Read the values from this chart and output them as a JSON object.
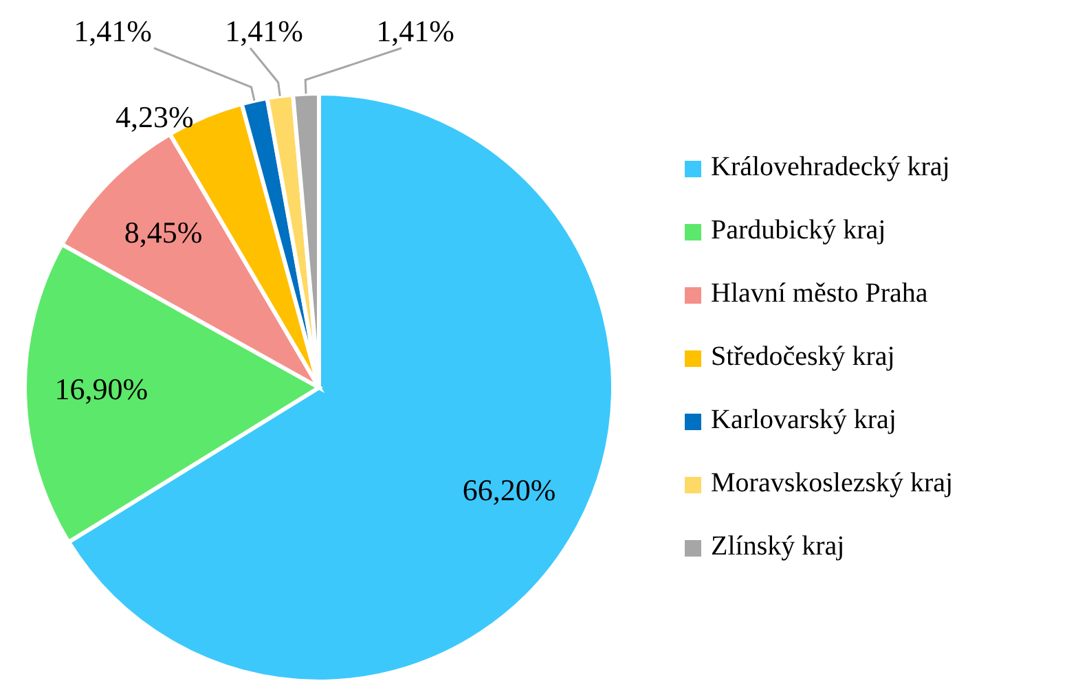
{
  "chart_data": {
    "type": "pie",
    "categories": [
      "Královehradecký kraj",
      "Pardubický kraj",
      "Hlavní město Praha",
      "Středočeský kraj",
      "Karlovarský kraj",
      "Moravskoslezský kraj",
      "Zlínský kraj"
    ],
    "values": [
      66.2,
      16.9,
      8.45,
      4.23,
      1.41,
      1.41,
      1.41
    ],
    "colors": [
      "#3dc8fb",
      "#5ce86a",
      "#f4908a",
      "#ffc000",
      "#0070c0",
      "#ffd966",
      "#a6a6a6"
    ],
    "value_labels": [
      "66,20%",
      "16,90%",
      "8,45%",
      "4,23%",
      "1,41%",
      "1,41%",
      "1,41%"
    ],
    "legend": "right"
  }
}
